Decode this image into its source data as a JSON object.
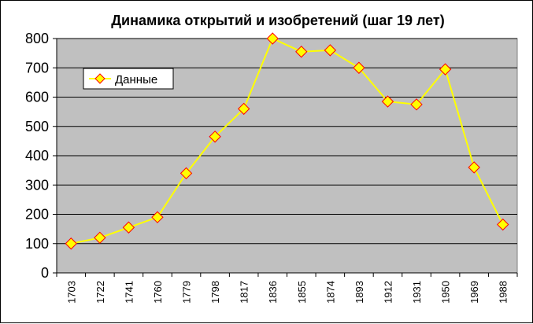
{
  "chart_data": {
    "type": "line",
    "title": "Динамика открытий и изобретений (шаг 19 лет)",
    "xlabel": "",
    "ylabel": "",
    "categories": [
      "1703",
      "1722",
      "1741",
      "1760",
      "1779",
      "1798",
      "1817",
      "1836",
      "1855",
      "1874",
      "1893",
      "1912",
      "1931",
      "1950",
      "1969",
      "1988"
    ],
    "series": [
      {
        "name": "Данные",
        "values": [
          100,
          120,
          155,
          190,
          340,
          465,
          560,
          800,
          755,
          760,
          700,
          585,
          575,
          695,
          360,
          165
        ]
      }
    ],
    "ylim": [
      0,
      800
    ],
    "yticks": [
      "0",
      "100",
      "200",
      "300",
      "400",
      "500",
      "600",
      "700",
      "800"
    ],
    "grid": true,
    "legend_position": "top-left",
    "colors": {
      "plot_background": "#c0c0c0",
      "line": "#ffff00",
      "marker_fill": "#ffff00",
      "marker_edge": "#ff0000",
      "gridline": "#000000"
    }
  }
}
